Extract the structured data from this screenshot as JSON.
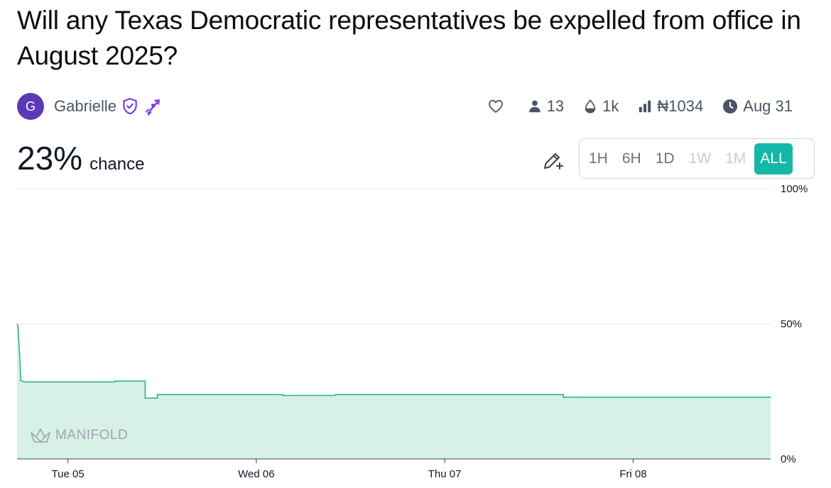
{
  "question": {
    "title": "Will any Texas Democratic representatives be expelled from office in August 2025?"
  },
  "author": {
    "avatar_letter": "G",
    "name": "Gabrielle",
    "badges": [
      "shield-check-icon",
      "arrow-heart-icon"
    ]
  },
  "stats": {
    "traders": "13",
    "liquidity": "1k",
    "volume": "₦1034",
    "close_date": "Aug 31"
  },
  "probability": {
    "value": "23%",
    "label": "chance"
  },
  "time_ranges": [
    {
      "label": "1H",
      "state": "enabled"
    },
    {
      "label": "6H",
      "state": "enabled"
    },
    {
      "label": "1D",
      "state": "enabled"
    },
    {
      "label": "1W",
      "state": "disabled"
    },
    {
      "label": "1M",
      "state": "disabled"
    },
    {
      "label": "ALL",
      "state": "active"
    }
  ],
  "brand": "MANIFOLD",
  "colors": {
    "accent": "#14b8a6",
    "line": "#2fb57c",
    "fill": "#d8f1e6",
    "avatar": "#5b3bb5",
    "badge": "#7c3aed"
  },
  "chart_data": {
    "type": "area",
    "title": "",
    "xlabel": "",
    "ylabel": "",
    "ylim": [
      0,
      100
    ],
    "y_ticks": [
      "100%",
      "50%",
      "0%"
    ],
    "x_ticks": [
      "Tue 05",
      "Wed 06",
      "Thu 07",
      "Fri 08"
    ],
    "x_unit": "days since Aug 04 00:00",
    "x_range": [
      0.73,
      4.73
    ],
    "series": [
      {
        "values": [
          [
            0.73,
            50
          ],
          [
            0.735,
            49
          ],
          [
            0.745,
            37
          ],
          [
            0.75,
            29
          ],
          [
            0.77,
            28.5
          ],
          [
            1.25,
            28.5
          ],
          [
            1.25,
            28.8
          ],
          [
            1.41,
            28.8
          ],
          [
            1.41,
            22.5
          ],
          [
            1.475,
            22.5
          ],
          [
            1.475,
            23.8
          ],
          [
            2.14,
            23.8
          ],
          [
            2.14,
            23.5
          ],
          [
            2.42,
            23.5
          ],
          [
            2.42,
            23.8
          ],
          [
            3.25,
            23.8
          ],
          [
            3.63,
            23.8
          ],
          [
            3.63,
            22.8
          ],
          [
            4.73,
            22.8
          ]
        ]
      }
    ]
  }
}
